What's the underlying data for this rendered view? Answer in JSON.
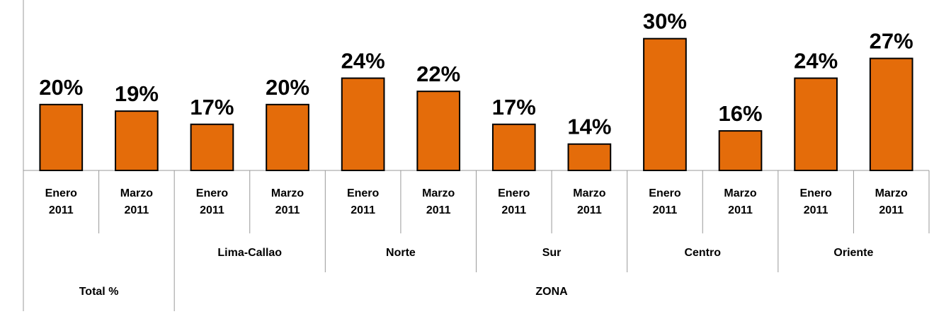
{
  "chart_data": {
    "type": "bar",
    "categories": [
      "Enero 2011",
      "Marzo 2011",
      "Enero 2011",
      "Marzo 2011",
      "Enero 2011",
      "Marzo 2011",
      "Enero 2011",
      "Marzo 2011",
      "Enero 2011",
      "Marzo 2011",
      "Enero 2011",
      "Marzo 2011"
    ],
    "zones": [
      null,
      "Lima-Callao",
      "Norte",
      "Sur",
      "Centro",
      "Oriente"
    ],
    "groups": [
      "Total %",
      "ZONA"
    ],
    "values": [
      20,
      19,
      17,
      20,
      24,
      22,
      17,
      14,
      30,
      16,
      24,
      27
    ],
    "value_labels": [
      "20%",
      "19%",
      "17%",
      "20%",
      "24%",
      "22%",
      "17%",
      "14%",
      "30%",
      "16%",
      "24%",
      "27%"
    ],
    "color": "#e46c0a",
    "ylim": [
      10,
      32
    ]
  }
}
